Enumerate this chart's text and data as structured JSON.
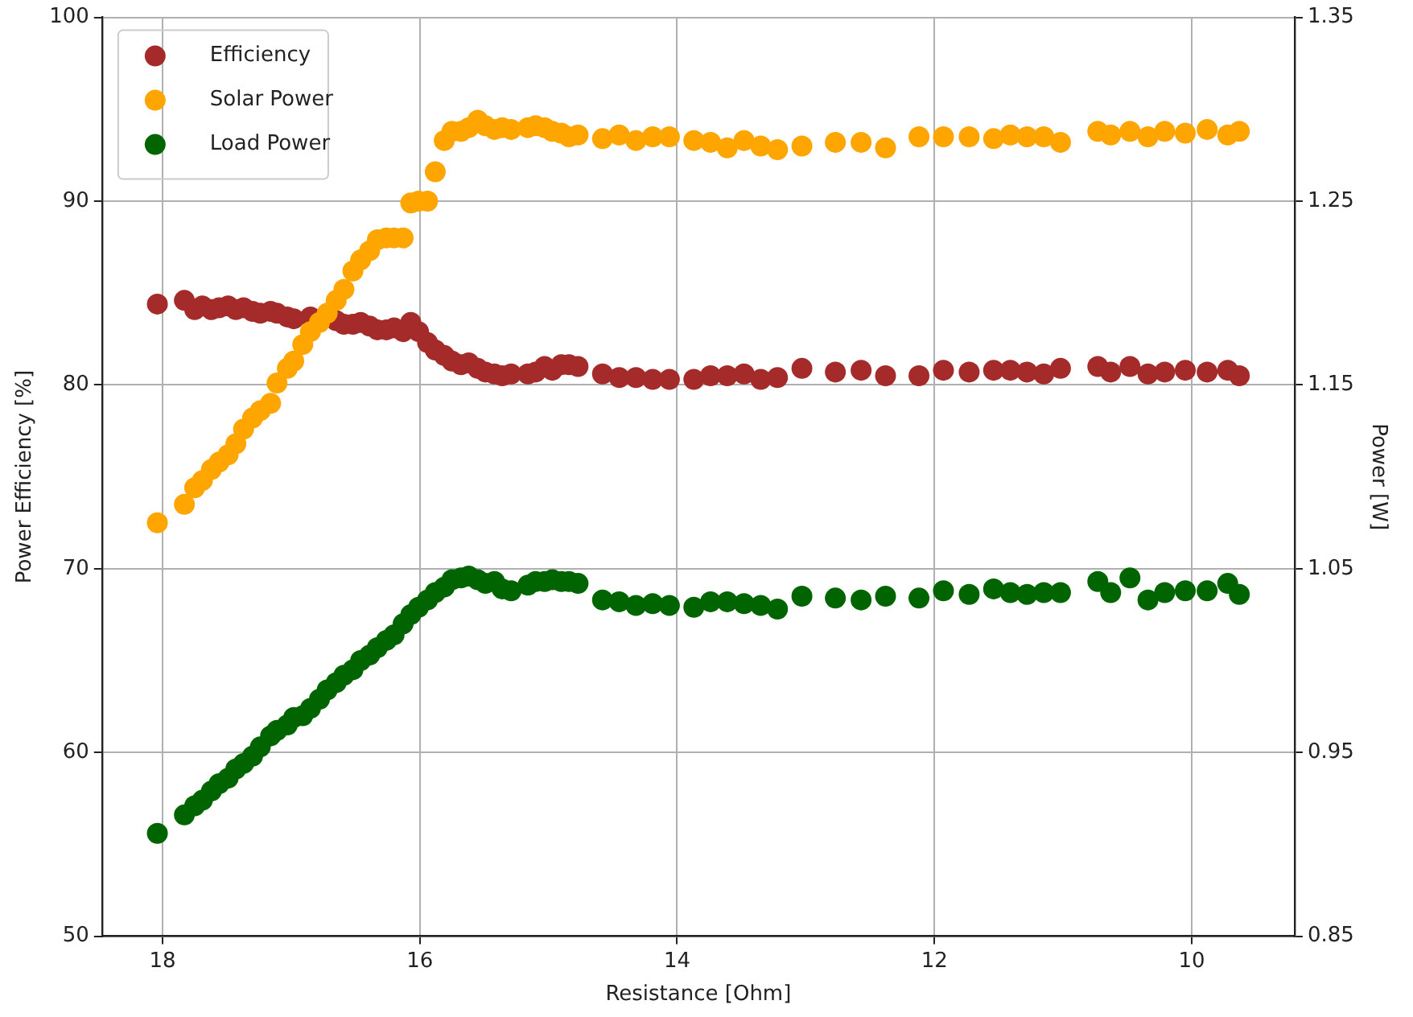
{
  "chart_data": {
    "type": "scatter",
    "xlabel": "Resistance [Ohm]",
    "ylabel": "Power Efficiency [%]",
    "y2label": "Power [W]",
    "x": [
      18.04,
      17.83,
      17.75,
      17.69,
      17.62,
      17.56,
      17.49,
      17.43,
      17.37,
      17.3,
      17.24,
      17.16,
      17.11,
      17.03,
      16.98,
      16.91,
      16.85,
      16.78,
      16.72,
      16.65,
      16.59,
      16.52,
      16.46,
      16.39,
      16.33,
      16.26,
      16.2,
      16.13,
      16.07,
      16.01,
      15.94,
      15.88,
      15.81,
      15.75,
      15.68,
      15.62,
      15.55,
      15.49,
      15.42,
      15.36,
      15.29,
      15.16,
      15.1,
      15.03,
      14.97,
      14.9,
      14.84,
      14.77,
      14.58,
      14.45,
      14.32,
      14.19,
      14.06,
      13.87,
      13.74,
      13.61,
      13.48,
      13.35,
      13.22,
      13.03,
      12.77,
      12.57,
      12.38,
      12.12,
      11.93,
      11.73,
      11.54,
      11.41,
      11.28,
      11.15,
      11.02,
      10.73,
      10.63,
      10.48,
      10.34,
      10.21,
      10.05,
      9.88,
      9.72,
      9.63
    ],
    "series": [
      {
        "name": "Efficiency",
        "color": "#a52a2a",
        "values": [
          84.4,
          84.6,
          84.1,
          84.3,
          84.1,
          84.2,
          84.3,
          84.1,
          84.2,
          84.0,
          83.9,
          84.0,
          83.9,
          83.7,
          83.6,
          null,
          83.7,
          null,
          null,
          83.5,
          83.3,
          83.3,
          83.4,
          83.2,
          83.0,
          83.0,
          83.1,
          82.9,
          83.4,
          82.9,
          82.3,
          81.9,
          81.6,
          81.3,
          81.1,
          81.2,
          80.9,
          80.7,
          80.6,
          80.5,
          80.6,
          80.6,
          80.7,
          81.0,
          80.8,
          81.1,
          81.1,
          81.0,
          80.6,
          80.4,
          80.4,
          80.3,
          80.3,
          80.3,
          80.5,
          80.5,
          80.6,
          80.3,
          80.4,
          80.9,
          80.7,
          80.8,
          80.5,
          80.5,
          80.8,
          80.7,
          80.8,
          80.8,
          80.7,
          80.6,
          80.9,
          81.0,
          80.7,
          81.0,
          80.6,
          80.7,
          80.8,
          80.7,
          80.8,
          80.5
        ]
      },
      {
        "name": "Solar Power",
        "color": "#ffa500",
        "axis": "y2",
        "values": [
          1.075,
          1.085,
          1.094,
          1.098,
          1.104,
          1.108,
          1.112,
          1.118,
          1.126,
          1.132,
          1.136,
          1.14,
          1.151,
          1.159,
          1.163,
          1.172,
          1.179,
          1.184,
          1.189,
          1.196,
          1.202,
          1.212,
          1.218,
          1.223,
          1.229,
          1.23,
          1.23,
          1.23,
          1.249,
          1.25,
          1.25,
          1.266,
          1.283,
          1.288,
          1.288,
          1.29,
          1.294,
          1.291,
          1.289,
          1.29,
          1.289,
          1.29,
          1.291,
          1.29,
          1.288,
          1.287,
          1.285,
          1.286,
          1.284,
          1.286,
          1.283,
          1.285,
          1.285,
          1.283,
          1.282,
          1.279,
          1.283,
          1.28,
          1.278,
          1.28,
          1.282,
          1.282,
          1.279,
          1.285,
          1.285,
          1.285,
          1.284,
          1.286,
          1.285,
          1.285,
          1.282,
          1.288,
          1.286,
          1.288,
          1.285,
          1.288,
          1.287,
          1.289,
          1.286,
          1.288
        ]
      },
      {
        "name": "Load Power",
        "color": "#006400",
        "axis": "y2",
        "values": [
          0.906,
          0.916,
          0.921,
          0.924,
          0.929,
          0.933,
          0.936,
          0.941,
          0.944,
          0.948,
          0.953,
          0.959,
          0.962,
          0.965,
          0.969,
          0.97,
          0.974,
          0.979,
          0.984,
          0.988,
          0.992,
          0.995,
          1.0,
          1.003,
          1.007,
          1.011,
          1.014,
          1.02,
          1.025,
          1.029,
          1.033,
          1.037,
          1.04,
          1.044,
          1.045,
          1.046,
          1.044,
          1.042,
          1.043,
          1.039,
          1.038,
          1.041,
          1.043,
          1.043,
          1.044,
          1.043,
          1.043,
          1.042,
          1.033,
          1.032,
          1.03,
          1.031,
          1.03,
          1.029,
          1.032,
          1.032,
          1.031,
          1.03,
          1.028,
          1.035,
          1.034,
          1.033,
          1.035,
          1.034,
          1.038,
          1.036,
          1.039,
          1.037,
          1.036,
          1.037,
          1.037,
          1.043,
          1.037,
          1.045,
          1.033,
          1.037,
          1.038,
          1.038,
          1.042,
          1.036
        ]
      }
    ],
    "xlim": [
      18.47,
      9.2
    ],
    "xticks": [
      18,
      16,
      14,
      12,
      10
    ],
    "ylim": [
      50,
      100
    ],
    "yticks": [
      50,
      60,
      70,
      80,
      90,
      100
    ],
    "y2lim": [
      0.85,
      1.35
    ],
    "y2ticks": [
      0.85,
      0.95,
      1.05,
      1.15,
      1.25,
      1.35
    ],
    "grid": true,
    "legend": "top left",
    "marker": "circle"
  }
}
